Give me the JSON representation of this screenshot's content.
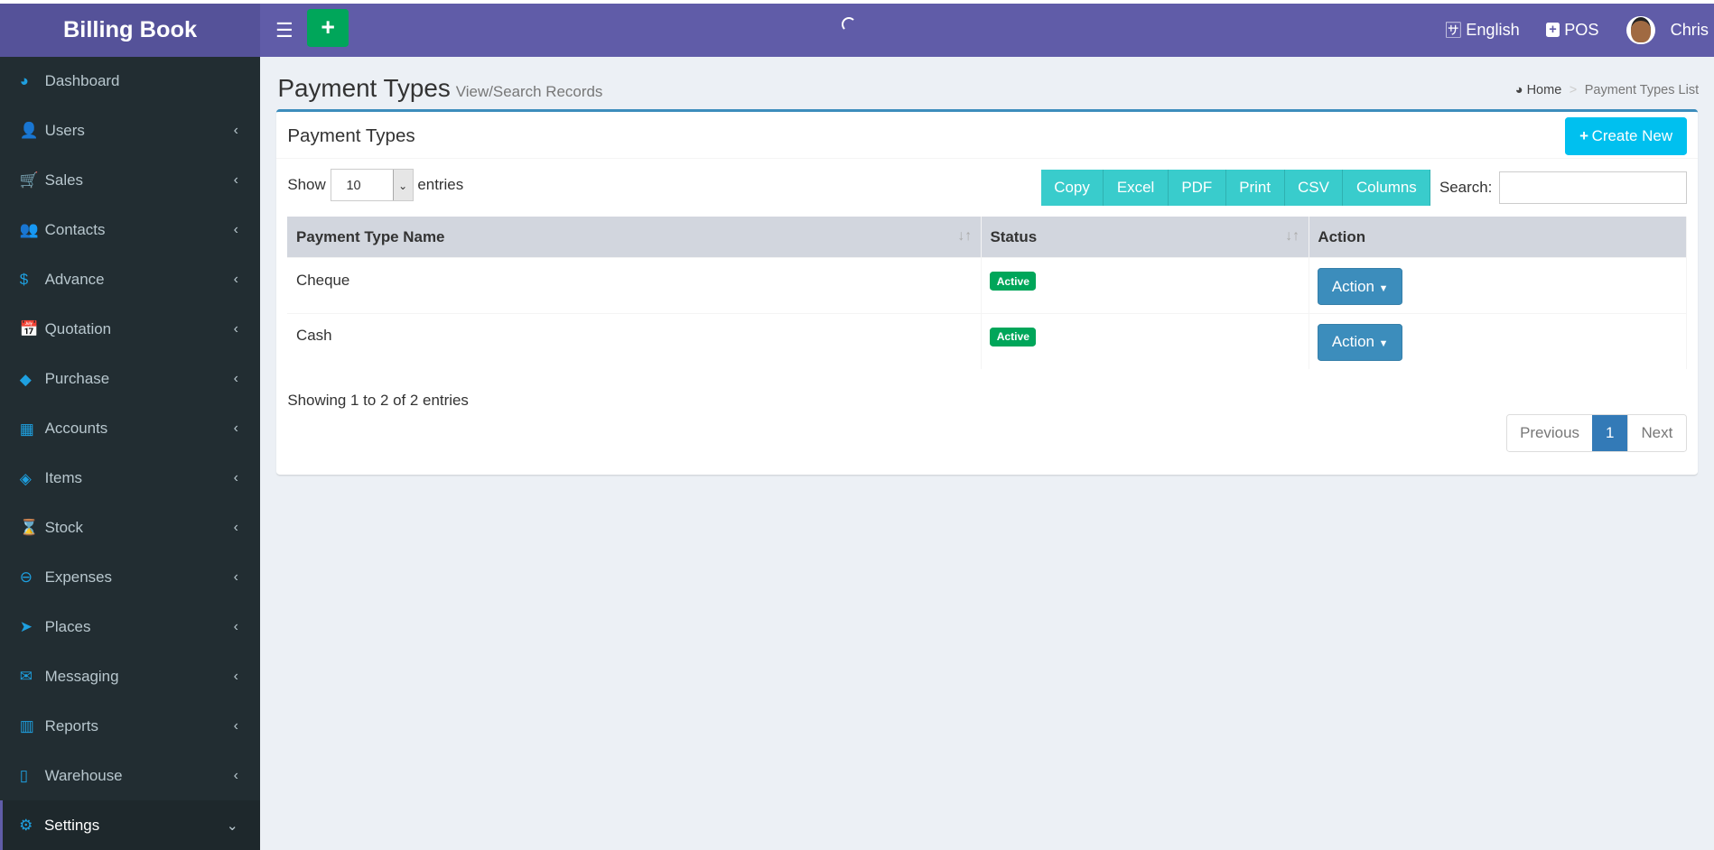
{
  "app": {
    "title": "Billing Book"
  },
  "navbar": {
    "language": "English",
    "pos": "POS",
    "user": "Chris"
  },
  "sidebar": {
    "items": [
      {
        "label": "Dashboard",
        "icon": "dashboard-icon",
        "glyph": "◕"
      },
      {
        "label": "Users",
        "icon": "user-plus-icon",
        "glyph": "👤"
      },
      {
        "label": "Sales",
        "icon": "cart-icon",
        "glyph": "🛒"
      },
      {
        "label": "Contacts",
        "icon": "users-icon",
        "glyph": "👥"
      },
      {
        "label": "Advance",
        "icon": "dollar-icon",
        "glyph": "$"
      },
      {
        "label": "Quotation",
        "icon": "calendar-plus-icon",
        "glyph": "📅"
      },
      {
        "label": "Purchase",
        "icon": "cube-icon",
        "glyph": "◆"
      },
      {
        "label": "Accounts",
        "icon": "th-large-icon",
        "glyph": "▦"
      },
      {
        "label": "Items",
        "icon": "cubes-icon",
        "glyph": "◈"
      },
      {
        "label": "Stock",
        "icon": "hourglass-icon",
        "glyph": "⌛"
      },
      {
        "label": "Expenses",
        "icon": "minus-circle-icon",
        "glyph": "⊖"
      },
      {
        "label": "Places",
        "icon": "paper-plane-icon",
        "glyph": "➤"
      },
      {
        "label": "Messaging",
        "icon": "envelope-icon",
        "glyph": "✉"
      },
      {
        "label": "Reports",
        "icon": "bar-chart-icon",
        "glyph": "▥"
      },
      {
        "label": "Warehouse",
        "icon": "building-icon",
        "glyph": "▯"
      },
      {
        "label": "Settings",
        "icon": "cogs-icon",
        "glyph": "⚙"
      }
    ]
  },
  "page": {
    "title": "Payment Types",
    "subtitle": "View/Search Records",
    "breadcrumb": {
      "home": "Home",
      "current": "Payment Types List"
    }
  },
  "box": {
    "title": "Payment Types",
    "create": "Create New",
    "show": "Show",
    "entries_value": "10",
    "entries": "entries",
    "buttons": [
      "Copy",
      "Excel",
      "PDF",
      "Print",
      "CSV",
      "Columns"
    ],
    "search_label": "Search:",
    "search_value": "",
    "columns": [
      "Payment Type Name",
      "Status",
      "Action"
    ],
    "rows": [
      {
        "name": "Cheque",
        "status": "Active",
        "action": "Action"
      },
      {
        "name": "Cash",
        "status": "Active",
        "action": "Action"
      }
    ],
    "info": "Showing 1 to 2 of 2 entries",
    "pagination": {
      "prev": "Previous",
      "page": "1",
      "next": "Next"
    }
  },
  "colors": {
    "navbar": "#605ca8",
    "sidebar": "#222d32",
    "accent": "#00c0ef",
    "active": "#00a65a"
  }
}
